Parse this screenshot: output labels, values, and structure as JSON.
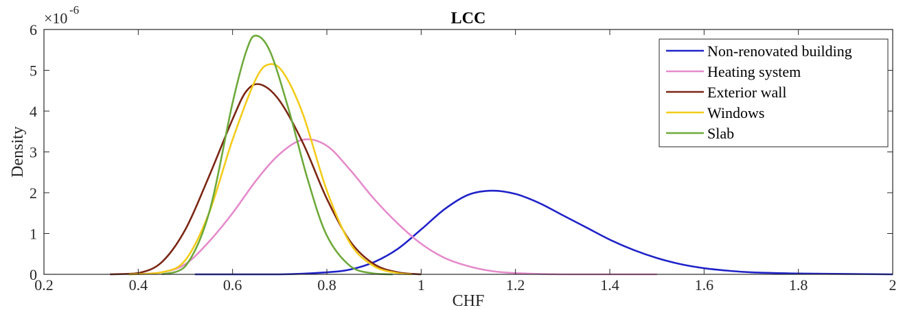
{
  "chart_data": {
    "type": "line",
    "title": "LCC",
    "xlabel": "CHF",
    "ylabel": "Density",
    "y_exponent_base": "×10",
    "y_exponent_power": "-6",
    "xlim": [
      0.2,
      2.0
    ],
    "ylim": [
      0,
      6
    ],
    "x_ticks": [
      0.2,
      0.4,
      0.6,
      0.8,
      1.0,
      1.2,
      1.4,
      1.6,
      1.8,
      2.0
    ],
    "x_tick_labels": [
      "0.2",
      "0.4",
      "0.6",
      "0.8",
      "1",
      "1.2",
      "1.4",
      "1.6",
      "1.8",
      "2"
    ],
    "y_ticks": [
      0,
      1,
      2,
      3,
      4,
      5,
      6
    ],
    "y_tick_labels": [
      "0",
      "1",
      "2",
      "3",
      "4",
      "5",
      "6"
    ],
    "grid": false,
    "legend_position": "top-right",
    "series": [
      {
        "name": "Non-renovated building",
        "color": "#1f22c8",
        "x": [
          0.52,
          0.7,
          0.8,
          0.85,
          0.9,
          0.95,
          1.0,
          1.05,
          1.1,
          1.15,
          1.2,
          1.25,
          1.3,
          1.35,
          1.4,
          1.45,
          1.5,
          1.55,
          1.6,
          1.65,
          1.7,
          1.8,
          1.9,
          2.0
        ],
        "y": [
          0,
          0,
          0.05,
          0.12,
          0.3,
          0.62,
          1.1,
          1.6,
          1.95,
          2.05,
          1.97,
          1.75,
          1.45,
          1.15,
          0.85,
          0.6,
          0.4,
          0.25,
          0.15,
          0.09,
          0.05,
          0.02,
          0.01,
          0
        ]
      },
      {
        "name": "Heating system",
        "color": "#e58acb",
        "x": [
          0.38,
          0.45,
          0.5,
          0.55,
          0.6,
          0.65,
          0.7,
          0.75,
          0.8,
          0.85,
          0.9,
          0.95,
          1.0,
          1.05,
          1.1,
          1.15,
          1.2,
          1.3,
          1.5
        ],
        "y": [
          0,
          0.05,
          0.25,
          0.8,
          1.5,
          2.3,
          2.95,
          3.3,
          3.15,
          2.55,
          1.85,
          1.25,
          0.75,
          0.4,
          0.2,
          0.08,
          0.03,
          0,
          0
        ]
      },
      {
        "name": "Exterior wall",
        "color": "#7b2613",
        "x": [
          0.34,
          0.4,
          0.45,
          0.5,
          0.55,
          0.6,
          0.63,
          0.66,
          0.7,
          0.75,
          0.8,
          0.85,
          0.9,
          0.95,
          1.0
        ],
        "y": [
          0,
          0.03,
          0.3,
          1.1,
          2.4,
          3.8,
          4.5,
          4.65,
          4.25,
          3.2,
          1.85,
          0.8,
          0.25,
          0.05,
          0
        ]
      },
      {
        "name": "Windows",
        "color": "#f2cc19",
        "x": [
          0.38,
          0.45,
          0.5,
          0.55,
          0.6,
          0.65,
          0.68,
          0.71,
          0.75,
          0.8,
          0.85,
          0.9,
          0.95,
          0.98
        ],
        "y": [
          0,
          0.05,
          0.35,
          1.5,
          3.3,
          4.8,
          5.15,
          4.9,
          3.9,
          2.05,
          0.75,
          0.2,
          0.03,
          0
        ]
      },
      {
        "name": "Slab",
        "color": "#6da93a",
        "x": [
          0.45,
          0.5,
          0.55,
          0.6,
          0.63,
          0.65,
          0.68,
          0.72,
          0.76,
          0.8,
          0.85,
          0.9,
          0.94
        ],
        "y": [
          0,
          0.2,
          1.5,
          4.2,
          5.5,
          5.85,
          5.45,
          4.0,
          2.3,
          0.95,
          0.2,
          0.02,
          0
        ]
      }
    ]
  }
}
